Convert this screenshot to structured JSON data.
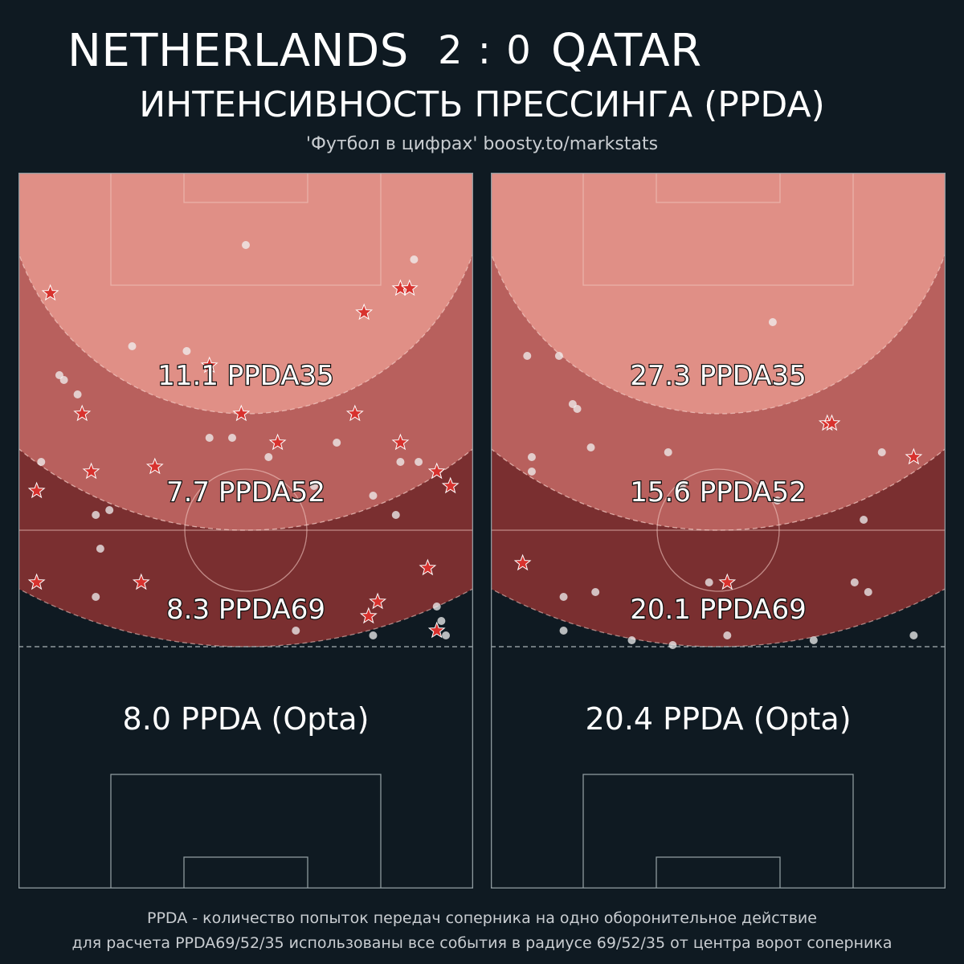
{
  "header": {
    "home_team": "NETHERLANDS",
    "score": "2 : 0",
    "away_team": "QATAR",
    "subtitle": "ИНТЕНСИВНОСТЬ ПРЕССИНГА (PPDA)",
    "credit": "'Футбол в цифрах' boosty.to/markstats"
  },
  "colors": {
    "background": "#0f1a22",
    "zone_ppda35": "#e08f86",
    "zone_ppda52": "#b8605d",
    "zone_ppda69": "#7a2f30",
    "pitch_lines": "#8e9a9f",
    "point": "#f2f2f2",
    "star": "#d8322e"
  },
  "panels": [
    {
      "team": "NETHERLANDS",
      "ppda35": "11.1 PPDA35",
      "ppda52": "7.7 PPDA52",
      "ppda69": "8.3 PPDA69",
      "opta": "8.0 PPDA (Opta)"
    },
    {
      "team": "QATAR",
      "ppda35": "27.3 PPDA35",
      "ppda52": "15.6 PPDA52",
      "ppda69": "20.1 PPDA69",
      "opta": "20.4 PPDA (Opta)"
    }
  ],
  "chart_data": [
    {
      "type": "scatter",
      "team": "NETHERLANDS",
      "metric_labels": [
        "11.1 PPDA35",
        "7.7 PPDA52",
        "8.3 PPDA69",
        "8.0 PPDA (Opta)"
      ],
      "series": [
        {
          "marker": "circle",
          "points": [
            [
              50,
              15
            ],
            [
              87,
              18
            ],
            [
              25,
              36
            ],
            [
              37,
              37
            ],
            [
              9,
              42
            ],
            [
              10,
              43
            ],
            [
              13,
              46
            ],
            [
              42,
              55
            ],
            [
              47,
              55
            ],
            [
              70,
              56
            ],
            [
              55,
              59
            ],
            [
              5,
              60
            ],
            [
              84,
              60
            ],
            [
              88,
              60
            ],
            [
              65,
              65
            ],
            [
              78,
              67
            ],
            [
              17,
              71
            ],
            [
              20,
              70
            ],
            [
              83,
              71
            ],
            [
              18,
              78
            ],
            [
              17,
              88
            ],
            [
              92,
              90
            ],
            [
              93,
              93
            ],
            [
              61,
              95
            ],
            [
              78,
              96
            ],
            [
              94,
              96
            ]
          ]
        },
        {
          "marker": "star",
          "points": [
            [
              7,
              25
            ],
            [
              84,
              24
            ],
            [
              86,
              24
            ],
            [
              76,
              29
            ],
            [
              42,
              40
            ],
            [
              14,
              50
            ],
            [
              49,
              50
            ],
            [
              74,
              50
            ],
            [
              57,
              56
            ],
            [
              84,
              56
            ],
            [
              16,
              62
            ],
            [
              30,
              61
            ],
            [
              92,
              62
            ],
            [
              4,
              66
            ],
            [
              95,
              65
            ],
            [
              90,
              82
            ],
            [
              27,
              85
            ],
            [
              4,
              85
            ],
            [
              79,
              89
            ],
            [
              77,
              92
            ],
            [
              92,
              95
            ]
          ]
        }
      ]
    },
    {
      "type": "scatter",
      "team": "QATAR",
      "metric_labels": [
        "27.3 PPDA35",
        "15.6 PPDA52",
        "20.1 PPDA69",
        "20.4 PPDA (Opta)"
      ],
      "series": [
        {
          "marker": "circle",
          "points": [
            [
              62,
              31
            ],
            [
              8,
              38
            ],
            [
              15,
              38
            ],
            [
              18,
              48
            ],
            [
              19,
              49
            ],
            [
              22,
              57
            ],
            [
              9,
              59
            ],
            [
              39,
              58
            ],
            [
              9,
              62
            ],
            [
              42,
              65
            ],
            [
              63,
              68
            ],
            [
              86,
              58
            ],
            [
              82,
              72
            ],
            [
              48,
              85
            ],
            [
              83,
              87
            ],
            [
              80,
              85
            ],
            [
              16,
              88
            ],
            [
              23,
              87
            ],
            [
              16,
              95
            ],
            [
              31,
              97
            ],
            [
              40,
              98
            ],
            [
              52,
              96
            ],
            [
              71,
              97
            ],
            [
              93,
              96
            ]
          ]
        },
        {
          "marker": "star",
          "points": [
            [
              74,
              52
            ],
            [
              75,
              52
            ],
            [
              93,
              59
            ],
            [
              7,
              81
            ],
            [
              52,
              85
            ]
          ]
        }
      ]
    }
  ],
  "footer": {
    "line1": "PPDA - количество попыток передач соперника на одно оборонительное действие",
    "line2": "для расчета PPDA69/52/35 использованы все события в радиусе 69/52/35 от центра ворот соперника"
  }
}
